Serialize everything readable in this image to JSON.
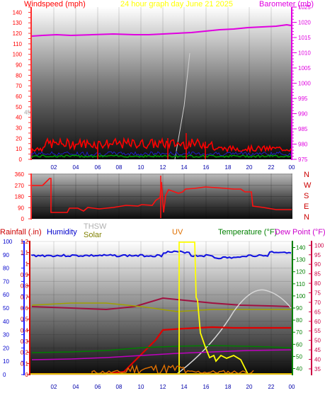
{
  "top_panel": {
    "title_left": "Windspeed (mph)",
    "title_center": "24 hour graph day   June 21 2025",
    "title_right": "Barometer (mb)",
    "left_ticks": [
      "145",
      "140",
      "135",
      "130",
      "125",
      "120",
      "115",
      "110",
      "105",
      "100",
      "95",
      "90",
      "85",
      "80",
      "75",
      "70",
      "65",
      "60",
      "55",
      "50",
      "45",
      "40",
      "35",
      "30",
      "25",
      "20",
      "15",
      "10",
      "5",
      "0"
    ],
    "left_ticks_shown": [
      "140",
      "130",
      "120",
      "110",
      "100",
      "90",
      "80",
      "70",
      "60",
      "50",
      "40",
      "30",
      "20",
      "10",
      "0"
    ],
    "left_ticks_faint": [
      "45"
    ],
    "right_ticks": [
      "1025",
      "1020",
      "1015",
      "1010",
      "1005",
      "1000",
      "995",
      "990",
      "985",
      "980",
      "975"
    ],
    "colors": {
      "wind": "#ff0000",
      "gust": "#3c0000",
      "wind_avg": "#00aa00",
      "baro": "#e000e0",
      "left_axis": "#ff2020",
      "right_axis": "#e000e0"
    }
  },
  "x_ticks": [
    "02",
    "04",
    "06",
    "08",
    "10",
    "12",
    "14",
    "16",
    "18",
    "20",
    "22",
    "00"
  ],
  "direction_panel": {
    "left_ticks": [
      "360",
      "270",
      "180",
      "90",
      "0"
    ],
    "compass": [
      "N",
      "W",
      "S",
      "E",
      "N"
    ],
    "color": "#ff0000"
  },
  "bottom_panel": {
    "header": {
      "rainfall": "Rainfall (.in)",
      "humidity": "Humidity",
      "thsw": "THSW",
      "solar": "Solar",
      "uv": "UV",
      "temperature": "Temperature (°F)",
      "dew_point": "Dew Point (°F)"
    },
    "left_ticks_a": [
      "100",
      "90",
      "80",
      "70",
      "60",
      "50",
      "40",
      "30",
      "20",
      "10",
      "0"
    ],
    "left_ticks_b": [
      "1.2",
      "1.1",
      "1",
      "0.9",
      "0.8",
      "0.7",
      "0.6",
      "0.5",
      "0.4",
      "0.3",
      "0.2",
      "0.1",
      "0"
    ],
    "right_ticks_a": [
      "140",
      "130",
      "120",
      "110",
      "100",
      "90",
      "80",
      "70",
      "60",
      "50",
      "40"
    ],
    "right_ticks_b": [
      "100",
      "95",
      "90",
      "85",
      "80",
      "75",
      "70",
      "65",
      "60",
      "55",
      "50",
      "45",
      "40",
      "35"
    ],
    "colors": {
      "rainfall": "#cc0000",
      "humidity": "#0000cc",
      "thsw": "#b0b0b0",
      "solar": "#808000",
      "uv": "#e07000",
      "temperature": "#008000",
      "dew_point": "#cc00cc"
    }
  }
}
